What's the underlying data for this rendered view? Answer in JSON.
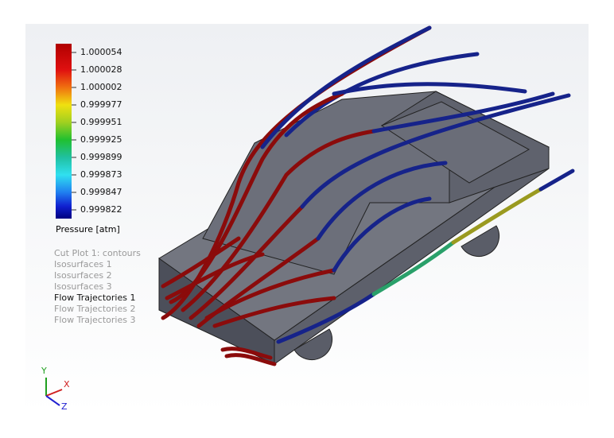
{
  "legend": {
    "values": [
      "1.000054",
      "1.000028",
      "1.000002",
      "0.999977",
      "0.999951",
      "0.999925",
      "0.999899",
      "0.999873",
      "0.999847",
      "0.999822"
    ],
    "title": "Pressure [atm]"
  },
  "plots": [
    {
      "label": "Cut Plot 1: contours",
      "active": false
    },
    {
      "label": "Isosurfaces 1",
      "active": false
    },
    {
      "label": "Isosurfaces 2",
      "active": false
    },
    {
      "label": "Isosurfaces 3",
      "active": false
    },
    {
      "label": "Flow Trajectories 1",
      "active": true
    },
    {
      "label": "Flow Trajectories 2",
      "active": false
    },
    {
      "label": "Flow Trajectories 3",
      "active": false
    }
  ],
  "triad": {
    "y": "Y",
    "x": "X",
    "z": "Z"
  }
}
